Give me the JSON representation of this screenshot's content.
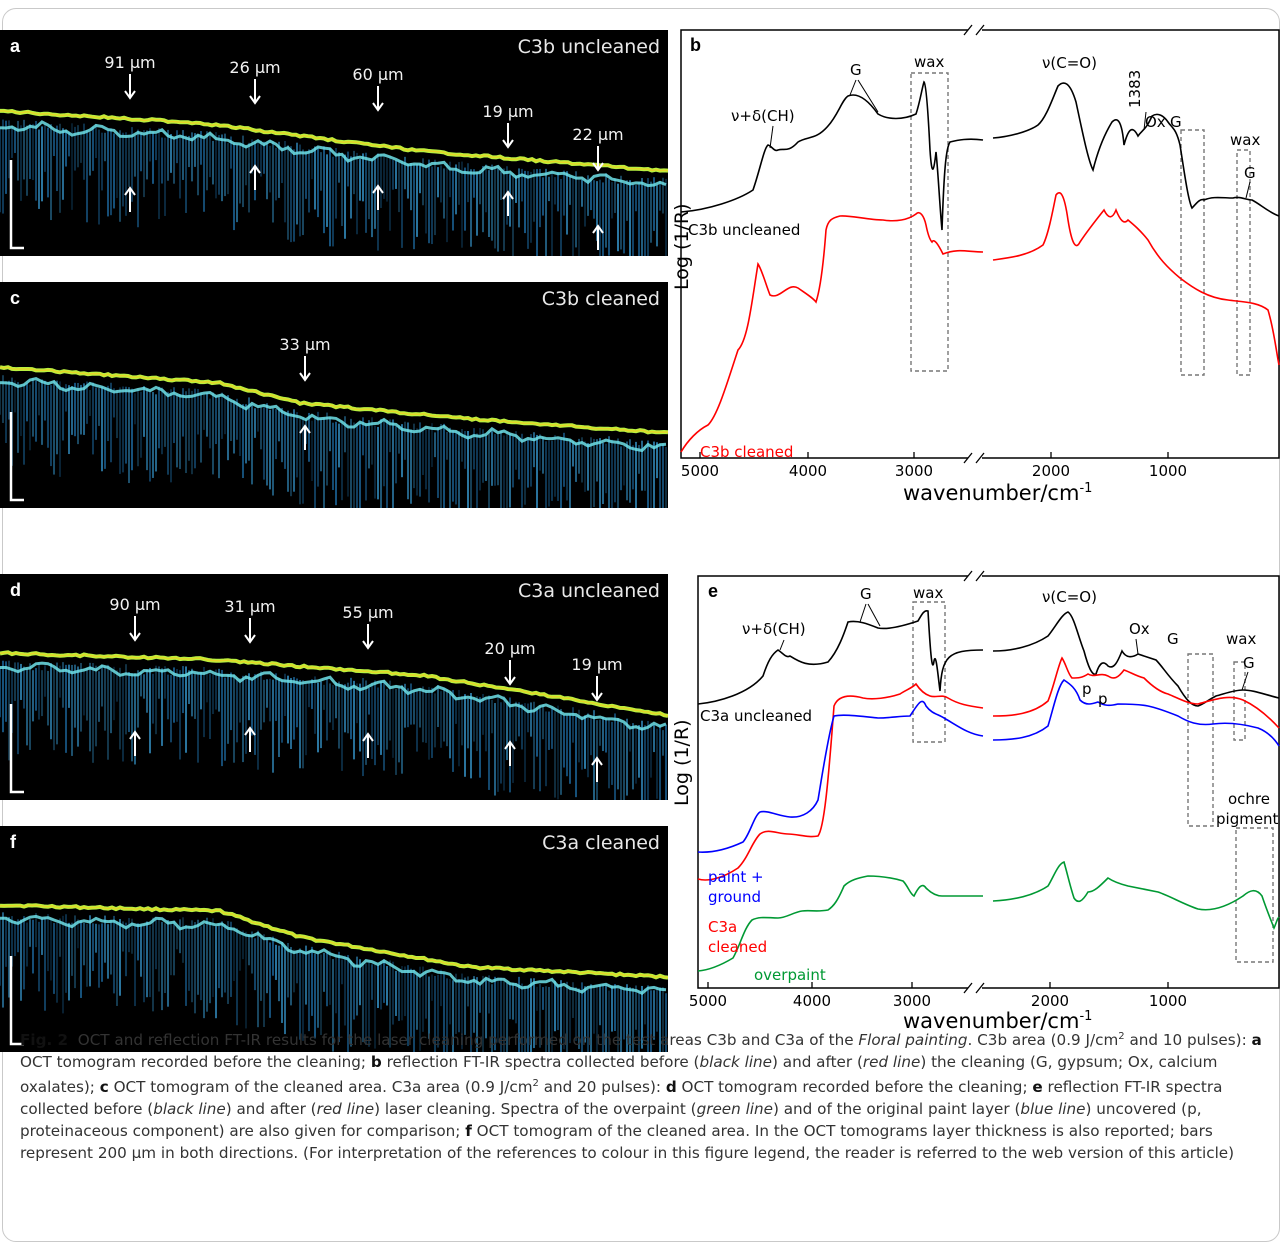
{
  "panels": {
    "a": {
      "letter": "a",
      "title": "C3b uncleaned",
      "labels": [
        "91 µm",
        "26 µm",
        "60 µm",
        "19 µm",
        "22 µm"
      ]
    },
    "c": {
      "letter": "c",
      "title": "C3b cleaned",
      "labels": [
        "33 µm"
      ]
    },
    "d": {
      "letter": "d",
      "title": "C3a uncleaned",
      "labels": [
        "90 µm",
        "31 µm",
        "55 µm",
        "20 µm",
        "19 µm"
      ]
    },
    "f": {
      "letter": "f",
      "title": "C3a cleaned",
      "labels": []
    },
    "b": {
      "letter": "b",
      "ylabel": "Log (1/R)",
      "xlabel": "wavenumber/cm",
      "xlabel_sup": "-1",
      "xticks": [
        "5000",
        "4000",
        "3000",
        "2000",
        "1000"
      ],
      "annotations": [
        "ν+δ(CH)",
        "G",
        "wax",
        "ν(C=O)",
        "1383",
        "Ox",
        "G",
        "wax",
        "G"
      ],
      "series_labels": [
        "C3b uncleaned",
        "C3b cleaned"
      ]
    },
    "e": {
      "letter": "e",
      "ylabel": "Log (1/R)",
      "xlabel": "wavenumber/cm",
      "xlabel_sup": "-1",
      "xticks": [
        "5000",
        "4000",
        "3000",
        "2000",
        "1000"
      ],
      "annotations": [
        "ν+δ(CH)",
        "G",
        "wax",
        "ν(C=O)",
        "Ox",
        "G",
        "wax",
        "G",
        "p",
        "p",
        "ochre",
        "pigment"
      ],
      "series_labels": [
        "C3a uncleaned",
        "paint +",
        "ground",
        "C3a",
        "cleaned",
        "overpaint"
      ]
    }
  },
  "colors": {
    "black_line": "#000000",
    "red_line": "#ff0000",
    "blue_line": "#0000ff",
    "green_line": "#009933"
  },
  "caption": {
    "fig": "Fig. 2",
    "t1": "OCT and reflection FT-IR results for the laser cleaning performed on the test areas C3b and C3a of the ",
    "t1_italic": "Floral painting",
    "t2": ". C3b area (0.9 J/cm",
    "t3": " and 10 pulses): ",
    "t4": " OCT tomogram recorded before the cleaning; ",
    "t5": " reflection FT-IR spectra collected before (",
    "t5_i": "black line",
    "t6": ") and after (",
    "t6_i": "red line",
    "t7": ") the cleaning (G, gypsum; Ox, calcium oxalates); ",
    "t8": " OCT tomogram of the cleaned area. C3a area (0.9 J/cm",
    "t9": " and 20 pulses): ",
    "t10": " OCT tomogram recorded before the cleaning; ",
    "t11": " reflection FT-IR spectra collected before (",
    "t11_i": "black line",
    "t12": ") and after (",
    "t12_i": "red line",
    "t13": ") laser cleaning. Spectra of the overpaint (",
    "t13_i": "green line",
    "t14": ") and of the original paint layer (",
    "t14_i": "blue line",
    "t15": ") uncovered (p, proteinaceous component) are also given for comparison; ",
    "t16": " OCT tomogram of the cleaned area. In the OCT tomograms layer thickness is also reported; bars represent 200 µm in both directions. (For interpretation of the references to colour in this figure legend, the reader is referred to the web version of this article)",
    "sup": "2",
    "la": "a",
    "lb": "b",
    "lc": "c",
    "ld": "d",
    "le": "e",
    "lf": "f"
  }
}
